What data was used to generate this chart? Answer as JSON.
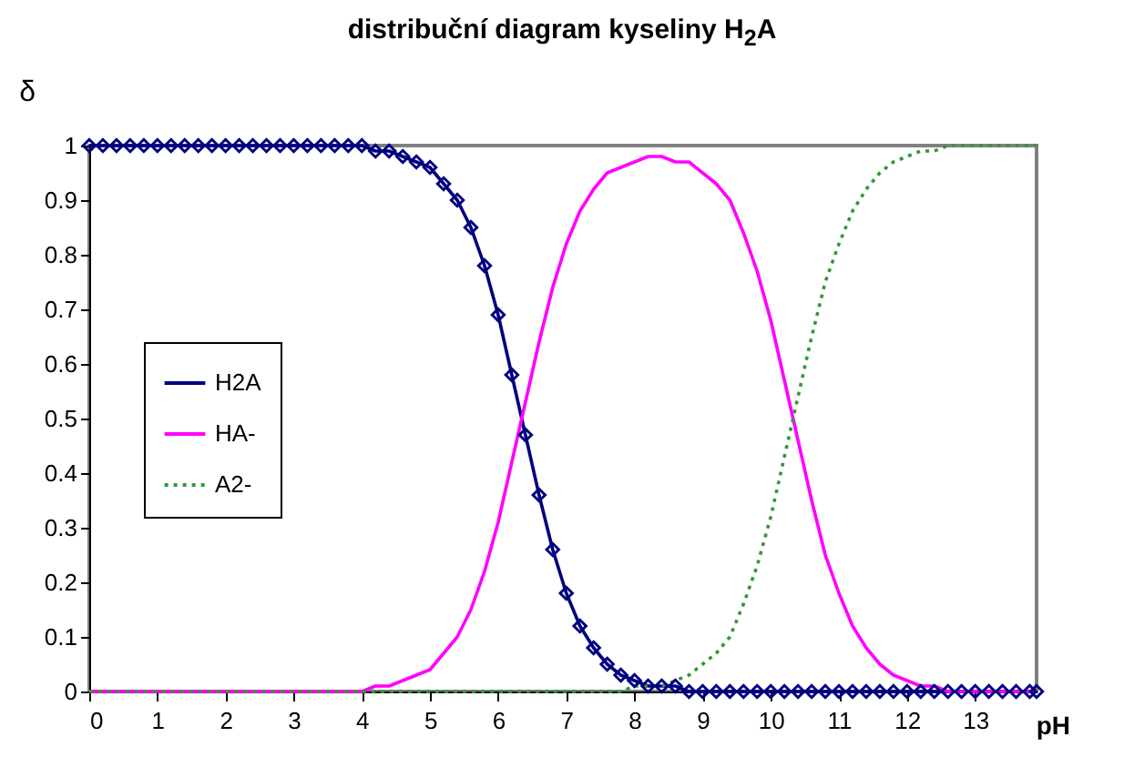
{
  "chart_data": {
    "type": "line",
    "title": "distribuční diagram kyseliny H$_{2}$A",
    "xlabel": "pH",
    "ylabel": "δ",
    "x": [
      0,
      0.2,
      0.4,
      0.6,
      0.8,
      1,
      1.2,
      1.4,
      1.6,
      1.8,
      2,
      2.2,
      2.4,
      2.6,
      2.8,
      3,
      3.2,
      3.4,
      3.6,
      3.8,
      4,
      4.2,
      4.4,
      4.6,
      4.8,
      5,
      5.2,
      5.4,
      5.6,
      5.8,
      6,
      6.2,
      6.4,
      6.6,
      6.8,
      7,
      7.2,
      7.4,
      7.6,
      7.8,
      8,
      8.2,
      8.4,
      8.6,
      8.8,
      9,
      9.2,
      9.4,
      9.6,
      9.8,
      10,
      10.2,
      10.4,
      10.6,
      10.8,
      11,
      11.2,
      11.4,
      11.6,
      11.8,
      12,
      12.2,
      12.4,
      12.6,
      12.8,
      13,
      13.2,
      13.4,
      13.6,
      13.8,
      13.9
    ],
    "series": [
      {
        "name": "H2A",
        "color": "#000080",
        "marker": "diamond",
        "line_style": "solid",
        "values": [
          1,
          1,
          1,
          1,
          1,
          1,
          1,
          1,
          1,
          1,
          1,
          1,
          1,
          1,
          1,
          1,
          1,
          1,
          1,
          1,
          1,
          0.99,
          0.99,
          0.98,
          0.97,
          0.96,
          0.93,
          0.9,
          0.85,
          0.78,
          0.69,
          0.58,
          0.47,
          0.36,
          0.26,
          0.18,
          0.12,
          0.08,
          0.05,
          0.03,
          0.02,
          0.01,
          0.01,
          0.01,
          0,
          0,
          0,
          0,
          0,
          0,
          0,
          0,
          0,
          0,
          0,
          0,
          0,
          0,
          0,
          0,
          0,
          0,
          0,
          0,
          0,
          0,
          0,
          0,
          0,
          0,
          0
        ]
      },
      {
        "name": "HA-",
        "color": "#ff00ff",
        "marker": "none",
        "line_style": "solid",
        "values": [
          0,
          0,
          0,
          0,
          0,
          0,
          0,
          0,
          0,
          0,
          0,
          0,
          0,
          0,
          0,
          0,
          0,
          0,
          0,
          0,
          0,
          0.01,
          0.01,
          0.02,
          0.03,
          0.04,
          0.07,
          0.1,
          0.15,
          0.22,
          0.31,
          0.42,
          0.53,
          0.64,
          0.74,
          0.82,
          0.88,
          0.92,
          0.95,
          0.96,
          0.97,
          0.98,
          0.98,
          0.97,
          0.97,
          0.95,
          0.93,
          0.9,
          0.84,
          0.77,
          0.68,
          0.57,
          0.46,
          0.35,
          0.25,
          0.18,
          0.12,
          0.08,
          0.05,
          0.03,
          0.02,
          0.01,
          0.01,
          0,
          0,
          0,
          0,
          0,
          0,
          0,
          0
        ]
      },
      {
        "name": "A2-",
        "color": "#339933",
        "marker": "none",
        "line_style": "dotted",
        "values": [
          0,
          0,
          0,
          0,
          0,
          0,
          0,
          0,
          0,
          0,
          0,
          0,
          0,
          0,
          0,
          0,
          0,
          0,
          0,
          0,
          0,
          0,
          0,
          0,
          0,
          0,
          0,
          0,
          0,
          0,
          0,
          0,
          0,
          0,
          0,
          0,
          0,
          0,
          0,
          0,
          0.01,
          0.01,
          0.01,
          0.02,
          0.03,
          0.05,
          0.07,
          0.1,
          0.16,
          0.23,
          0.32,
          0.43,
          0.54,
          0.65,
          0.75,
          0.82,
          0.88,
          0.92,
          0.95,
          0.97,
          0.98,
          0.99,
          0.99,
          1,
          1,
          1,
          1,
          1,
          1,
          1,
          1
        ]
      }
    ],
    "xlim": [
      0,
      13.9
    ],
    "xticks": [
      0,
      1,
      2,
      3,
      4,
      5,
      6,
      7,
      8,
      9,
      10,
      11,
      12,
      13
    ],
    "ylim": [
      0,
      1
    ],
    "yticks": [
      0,
      0.1,
      0.2,
      0.3,
      0.4,
      0.5,
      0.6,
      0.7,
      0.8,
      0.9,
      1
    ],
    "grid": false,
    "legend": "left"
  }
}
